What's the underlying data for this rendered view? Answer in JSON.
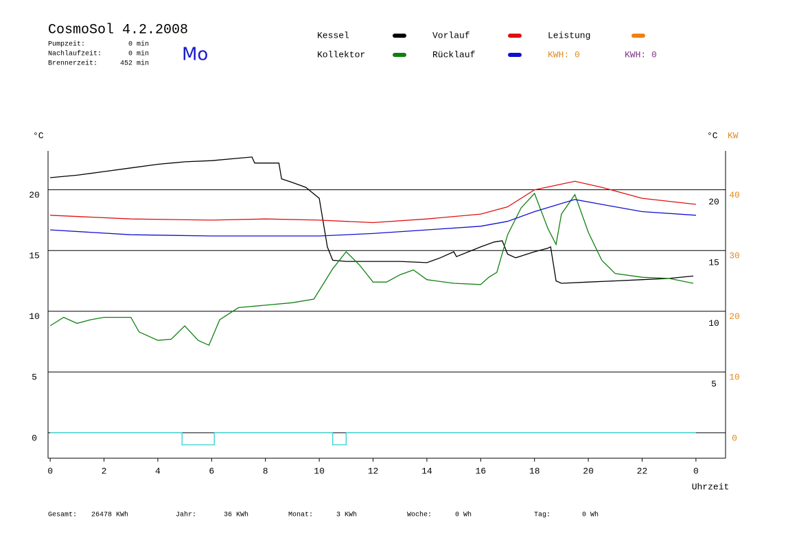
{
  "header": {
    "title": "CosmoSol 4.2.2008",
    "day": "Mo",
    "stats": [
      {
        "label": "Pumpzeit:",
        "value": "0 min"
      },
      {
        "label": "Nachlaufzeit:",
        "value": "0 min"
      },
      {
        "label": "Brennerzeit:",
        "value": "452 min"
      }
    ],
    "kwh": [
      {
        "label": "KWH: 0",
        "color": "#e08a1e"
      },
      {
        "label": "KWH: 0",
        "color": "#80308a"
      }
    ]
  },
  "footer": [
    {
      "label": "Gesamt:",
      "value": "26478 KWh"
    },
    {
      "label": "Jahr:",
      "value": "36 KWh"
    },
    {
      "label": "Monat:",
      "value": "3 KWh"
    },
    {
      "label": "Woche:",
      "value": "0 Wh"
    },
    {
      "label": "Tag:",
      "value": "0 Wh"
    }
  ],
  "chart_data": {
    "type": "line",
    "y_unit": "°C",
    "y2_units": [
      "°C",
      "KW"
    ],
    "xlabel": "Uhrzeit",
    "xlim": [
      -0.08,
      25.1
    ],
    "xticks": [
      0,
      2,
      4,
      6,
      8,
      10,
      12,
      14,
      16,
      18,
      20,
      22,
      {
        "value": 24,
        "label": "0"
      }
    ],
    "ylim": [
      -2.1,
      23.2
    ],
    "yticks": [
      0,
      5,
      10,
      15,
      20
    ],
    "y_right_ticks": [
      5,
      10,
      15,
      20
    ],
    "y2lim": [
      -4.2,
      46.4
    ],
    "y2ticks": [
      0,
      10,
      20,
      30,
      40
    ],
    "grid": true,
    "series": [
      {
        "name": "Kessel",
        "color": "#000000",
        "x": [
          0,
          1,
          2,
          3,
          4,
          5,
          6,
          7,
          7.5,
          7.6,
          8.5,
          8.6,
          9,
          9.5,
          10,
          10.3,
          10.5,
          11,
          12,
          13,
          14,
          14.5,
          15,
          15.1,
          16,
          16.5,
          16.8,
          17,
          17.3,
          18,
          18.5,
          18.6,
          18.8,
          19,
          20,
          21,
          22,
          23,
          23.9
        ],
        "values": [
          21.0,
          21.2,
          21.5,
          21.8,
          22.1,
          22.3,
          22.4,
          22.6,
          22.7,
          22.2,
          22.2,
          20.9,
          20.6,
          20.2,
          19.3,
          15.3,
          14.2,
          14.1,
          14.1,
          14.1,
          14.0,
          14.4,
          14.9,
          14.5,
          15.3,
          15.7,
          15.8,
          14.7,
          14.4,
          14.9,
          15.2,
          15.3,
          12.5,
          12.3,
          12.4,
          12.5,
          12.6,
          12.7,
          12.9
        ]
      },
      {
        "name": "Vorlauf",
        "color": "#e01010",
        "x": [
          0,
          3,
          6,
          8,
          10,
          12,
          14,
          16,
          17,
          18,
          19.5,
          20.5,
          22,
          24
        ],
        "values": [
          17.9,
          17.6,
          17.5,
          17.6,
          17.5,
          17.3,
          17.6,
          18.0,
          18.6,
          20.0,
          20.7,
          20.2,
          19.3,
          18.8
        ]
      },
      {
        "name": "Leistung",
        "color": "#f08010",
        "x": [],
        "values": []
      },
      {
        "name": "Kollektor",
        "color": "#108010",
        "x": [
          0,
          0.5,
          1,
          1.5,
          2,
          3,
          3.3,
          4,
          4.5,
          5,
          5.5,
          5.9,
          6.3,
          7,
          8,
          9,
          9.8,
          10.5,
          11,
          11.5,
          12,
          12.5,
          13,
          13.5,
          14,
          15,
          16,
          16.3,
          16.6,
          17,
          17.5,
          18,
          18.5,
          18.8,
          19,
          19.5,
          20,
          20.5,
          21,
          22,
          23,
          23.9
        ],
        "values": [
          8.8,
          9.5,
          9.0,
          9.3,
          9.5,
          9.5,
          8.3,
          7.6,
          7.7,
          8.8,
          7.6,
          7.2,
          9.3,
          10.3,
          10.5,
          10.7,
          11.0,
          13.5,
          14.9,
          13.8,
          12.4,
          12.4,
          13.0,
          13.4,
          12.6,
          12.3,
          12.2,
          12.8,
          13.2,
          16.3,
          18.5,
          19.7,
          16.8,
          15.5,
          18.0,
          19.6,
          16.5,
          14.2,
          13.1,
          12.8,
          12.7,
          12.3
        ]
      },
      {
        "name": "Rücklauf",
        "color": "#1010d0",
        "x": [
          0,
          3,
          6,
          10,
          12,
          14,
          16,
          17,
          18,
          19.5,
          21,
          22,
          24
        ],
        "values": [
          16.7,
          16.3,
          16.2,
          16.2,
          16.4,
          16.7,
          17.0,
          17.4,
          18.2,
          19.2,
          18.6,
          18.2,
          17.9
        ]
      },
      {
        "color": "#30d0d0",
        "x": [
          0,
          4.9,
          4.9,
          6.1,
          6.1,
          10.5,
          10.5,
          11.0,
          11.0,
          24
        ],
        "values": [
          0,
          0,
          -1,
          -1,
          0,
          0,
          -1,
          -1,
          0,
          0
        ]
      }
    ]
  }
}
